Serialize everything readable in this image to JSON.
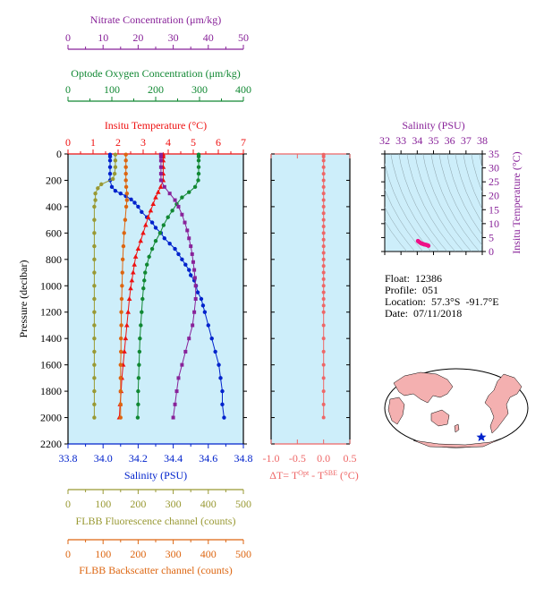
{
  "float_info": {
    "float": "Float:  12386",
    "profile": "Profile:  051",
    "location": "Location:  57.3°S  -91.7°E",
    "date": "Date:  07/11/2018"
  },
  "colors": {
    "salinity": "#0022cc",
    "temperature": "#ee1111",
    "oxygen": "#118833",
    "nitrate": "#882299",
    "fluorescence": "#999933",
    "backscatter": "#dd6611",
    "ts_points": "#ee1188",
    "delta": "#ee6666",
    "panel_bg": "#cdeefa"
  },
  "chart_data": [
    {
      "type": "line",
      "name": "profiles",
      "ylabel": "Pressure (decibar)",
      "ylim": [
        2200,
        0
      ],
      "yticks": [
        0,
        200,
        400,
        600,
        800,
        1000,
        1200,
        1400,
        1600,
        1800,
        2000,
        2200
      ],
      "axes": {
        "nitrate": {
          "label": "Nitrate Concentration (μm/kg)",
          "lim": [
            0,
            50
          ],
          "ticks": [
            0,
            10,
            20,
            30,
            40,
            50
          ]
        },
        "oxygen": {
          "label": "Optode Oxygen Concentration (μm/kg)",
          "lim": [
            0,
            400
          ],
          "ticks": [
            0,
            100,
            200,
            300,
            400
          ]
        },
        "temperature": {
          "label": "Insitu Temperature (°C)",
          "lim": [
            0,
            7
          ],
          "ticks": [
            0,
            1,
            2,
            3,
            4,
            5,
            6,
            7
          ]
        },
        "salinity": {
          "label": "Salinity (PSU)",
          "lim": [
            33.8,
            34.8
          ],
          "ticks": [
            "33.8",
            "34.0",
            "34.2",
            "34.4",
            "34.6",
            "34.8"
          ]
        },
        "fluorescence": {
          "label": "FLBB Fluorescence channel (counts)",
          "lim": [
            0,
            500
          ],
          "ticks": [
            0,
            100,
            200,
            300,
            400,
            500
          ]
        },
        "backscatter": {
          "label": "FLBB Backscatter channel (counts)",
          "lim": [
            0,
            500
          ],
          "ticks": [
            0,
            100,
            200,
            300,
            400,
            500
          ]
        }
      },
      "series": [
        {
          "key": "salinity",
          "marker": "circle",
          "points": [
            [
              34.04,
              5
            ],
            [
              34.04,
              20
            ],
            [
              34.04,
              50
            ],
            [
              34.04,
              100
            ],
            [
              34.04,
              150
            ],
            [
              34.04,
              200
            ],
            [
              34.05,
              250
            ],
            [
              34.07,
              280
            ],
            [
              34.1,
              300
            ],
            [
              34.13,
              320
            ],
            [
              34.16,
              345
            ],
            [
              34.18,
              370
            ],
            [
              34.2,
              400
            ],
            [
              34.22,
              440
            ],
            [
              34.25,
              480
            ],
            [
              34.28,
              520
            ],
            [
              34.3,
              560
            ],
            [
              34.33,
              600
            ],
            [
              34.35,
              640
            ],
            [
              34.38,
              680
            ],
            [
              34.41,
              720
            ],
            [
              34.43,
              760
            ],
            [
              34.45,
              800
            ],
            [
              34.47,
              840
            ],
            [
              34.49,
              880
            ],
            [
              34.5,
              920
            ],
            [
              34.52,
              960
            ],
            [
              34.53,
              1000
            ],
            [
              34.54,
              1050
            ],
            [
              34.56,
              1100
            ],
            [
              34.57,
              1150
            ],
            [
              34.58,
              1200
            ],
            [
              34.6,
              1300
            ],
            [
              34.62,
              1400
            ],
            [
              34.64,
              1500
            ],
            [
              34.66,
              1600
            ],
            [
              34.67,
              1700
            ],
            [
              34.68,
              1800
            ],
            [
              34.68,
              1900
            ],
            [
              34.69,
              2000
            ]
          ]
        },
        {
          "key": "temperature",
          "marker": "triangle",
          "points": [
            [
              3.8,
              5
            ],
            [
              3.8,
              20
            ],
            [
              3.8,
              50
            ],
            [
              3.8,
              100
            ],
            [
              3.8,
              150
            ],
            [
              3.8,
              200
            ],
            [
              3.7,
              250
            ],
            [
              3.6,
              290
            ],
            [
              3.5,
              330
            ],
            [
              3.4,
              380
            ],
            [
              3.3,
              430
            ],
            [
              3.2,
              480
            ],
            [
              3.1,
              540
            ],
            [
              3.0,
              600
            ],
            [
              2.9,
              660
            ],
            [
              2.8,
              720
            ],
            [
              2.7,
              780
            ],
            [
              2.65,
              840
            ],
            [
              2.6,
              900
            ],
            [
              2.55,
              960
            ],
            [
              2.5,
              1020
            ],
            [
              2.45,
              1100
            ],
            [
              2.4,
              1200
            ],
            [
              2.35,
              1300
            ],
            [
              2.3,
              1400
            ],
            [
              2.25,
              1500
            ],
            [
              2.2,
              1600
            ],
            [
              2.15,
              1700
            ],
            [
              2.12,
              1800
            ],
            [
              2.08,
              1900
            ],
            [
              2.05,
              2000
            ]
          ]
        },
        {
          "key": "oxygen",
          "marker": "circle",
          "points": [
            [
              298,
              5
            ],
            [
              298,
              20
            ],
            [
              298,
              50
            ],
            [
              298,
              100
            ],
            [
              298,
              150
            ],
            [
              297,
              200
            ],
            [
              290,
              250
            ],
            [
              276,
              290
            ],
            [
              260,
              330
            ],
            [
              248,
              380
            ],
            [
              238,
              430
            ],
            [
              228,
              480
            ],
            [
              218,
              540
            ],
            [
              210,
              600
            ],
            [
              200,
              660
            ],
            [
              192,
              720
            ],
            [
              185,
              780
            ],
            [
              180,
              840
            ],
            [
              176,
              900
            ],
            [
              174,
              960
            ],
            [
              172,
              1020
            ],
            [
              170,
              1100
            ],
            [
              168,
              1200
            ],
            [
              166,
              1300
            ],
            [
              164,
              1400
            ],
            [
              163,
              1500
            ],
            [
              162,
              1600
            ],
            [
              161,
              1700
            ],
            [
              160,
              1800
            ],
            [
              160,
              1900
            ],
            [
              159,
              2000
            ]
          ]
        },
        {
          "key": "nitrate",
          "marker": "square",
          "points": [
            [
              26.5,
              5
            ],
            [
              26.5,
              20
            ],
            [
              26.5,
              50
            ],
            [
              26.5,
              100
            ],
            [
              26.5,
              150
            ],
            [
              26.5,
              200
            ],
            [
              27.5,
              250
            ],
            [
              29,
              300
            ],
            [
              30.5,
              350
            ],
            [
              31.5,
              400
            ],
            [
              32.5,
              460
            ],
            [
              33.3,
              520
            ],
            [
              34,
              580
            ],
            [
              34.5,
              640
            ],
            [
              35,
              700
            ],
            [
              35.4,
              760
            ],
            [
              35.7,
              820
            ],
            [
              36,
              880
            ],
            [
              36.2,
              940
            ],
            [
              36.4,
              1000
            ],
            [
              36.4,
              1100
            ],
            [
              36,
              1200
            ],
            [
              35.5,
              1300
            ],
            [
              34.5,
              1400
            ],
            [
              33.5,
              1500
            ],
            [
              32.5,
              1600
            ],
            [
              31.5,
              1700
            ],
            [
              31,
              1800
            ],
            [
              30.5,
              1900
            ],
            [
              30,
              2000
            ]
          ]
        },
        {
          "key": "fluorescence",
          "marker": "circle",
          "points": [
            [
              135,
              5
            ],
            [
              135,
              50
            ],
            [
              135,
              100
            ],
            [
              133,
              150
            ],
            [
              128,
              190
            ],
            [
              95,
              230
            ],
            [
              85,
              260
            ],
            [
              78,
              300
            ],
            [
              78,
              350
            ],
            [
              75,
              400
            ],
            [
              75,
              500
            ],
            [
              75,
              600
            ],
            [
              75,
              700
            ],
            [
              75,
              800
            ],
            [
              75,
              900
            ],
            [
              75,
              1000
            ],
            [
              75,
              1100
            ],
            [
              75,
              1200
            ],
            [
              75,
              1300
            ],
            [
              75,
              1400
            ],
            [
              75,
              1500
            ],
            [
              75,
              1600
            ],
            [
              75,
              1700
            ],
            [
              75,
              1800
            ],
            [
              75,
              1900
            ],
            [
              75,
              2000
            ]
          ]
        },
        {
          "key": "backscatter",
          "marker": "circle",
          "points": [
            [
              165,
              5
            ],
            [
              165,
              50
            ],
            [
              165,
              100
            ],
            [
              165,
              150
            ],
            [
              165,
              200
            ],
            [
              166,
              250
            ],
            [
              168,
              300
            ],
            [
              168,
              350
            ],
            [
              166,
              400
            ],
            [
              163,
              500
            ],
            [
              160,
              600
            ],
            [
              158,
              700
            ],
            [
              156,
              800
            ],
            [
              155,
              900
            ],
            [
              154,
              1000
            ],
            [
              153,
              1100
            ],
            [
              152,
              1200
            ],
            [
              152,
              1300
            ],
            [
              151,
              1400
            ],
            [
              151,
              1500
            ],
            [
              150,
              1600
            ],
            [
              150,
              1700
            ],
            [
              150,
              1800
            ],
            [
              150,
              1900
            ],
            [
              150,
              2000
            ]
          ]
        }
      ]
    },
    {
      "type": "scatter",
      "name": "delta-t",
      "xlabel": "ΔT= T",
      "xlabel_sup1": "Opt",
      "xlabel_mid": " - T",
      "xlabel_sup2": "SBE",
      "xlabel_end": " (°C)",
      "xlim": [
        -1.0,
        0.5
      ],
      "xticks": [
        "-1.0",
        "-0.5",
        "0.0",
        "0.5"
      ],
      "ylim": [
        2200,
        0
      ],
      "points": [
        [
          0,
          5
        ],
        [
          0,
          20
        ],
        [
          0,
          50
        ],
        [
          0,
          100
        ],
        [
          0,
          150
        ],
        [
          0,
          200
        ],
        [
          0,
          250
        ],
        [
          0,
          300
        ],
        [
          0,
          350
        ],
        [
          0,
          400
        ],
        [
          0,
          450
        ],
        [
          0,
          500
        ],
        [
          0,
          550
        ],
        [
          0,
          600
        ],
        [
          0,
          650
        ],
        [
          0,
          700
        ],
        [
          0,
          750
        ],
        [
          0,
          800
        ],
        [
          0,
          850
        ],
        [
          0,
          900
        ],
        [
          0,
          950
        ],
        [
          0,
          1000
        ],
        [
          0,
          1050
        ],
        [
          0,
          1100
        ],
        [
          0,
          1150
        ],
        [
          0,
          1200
        ],
        [
          0,
          1300
        ],
        [
          0,
          1400
        ],
        [
          0,
          1500
        ],
        [
          0,
          1600
        ],
        [
          0,
          1700
        ],
        [
          0,
          1800
        ],
        [
          0,
          1900
        ],
        [
          0,
          2000
        ]
      ]
    },
    {
      "type": "scatter",
      "name": "ts-diagram",
      "title": "Salinity (PSU)",
      "ylabel": "Insitu Temperature (°C)",
      "xlim": [
        32,
        38
      ],
      "xticks": [
        32,
        33,
        34,
        35,
        36,
        37,
        38
      ],
      "ylim": [
        0,
        35
      ],
      "yticks": [
        0,
        5,
        10,
        15,
        20,
        25,
        30,
        35
      ],
      "points": [
        [
          34.04,
          3.8
        ],
        [
          34.06,
          3.7
        ],
        [
          34.1,
          3.5
        ],
        [
          34.15,
          3.3
        ],
        [
          34.2,
          3.1
        ],
        [
          34.25,
          2.9
        ],
        [
          34.3,
          2.8
        ],
        [
          34.35,
          2.7
        ],
        [
          34.4,
          2.6
        ],
        [
          34.45,
          2.5
        ],
        [
          34.5,
          2.45
        ],
        [
          34.55,
          2.4
        ],
        [
          34.6,
          2.3
        ],
        [
          34.65,
          2.2
        ],
        [
          34.68,
          2.1
        ],
        [
          34.69,
          2.05
        ]
      ]
    }
  ]
}
